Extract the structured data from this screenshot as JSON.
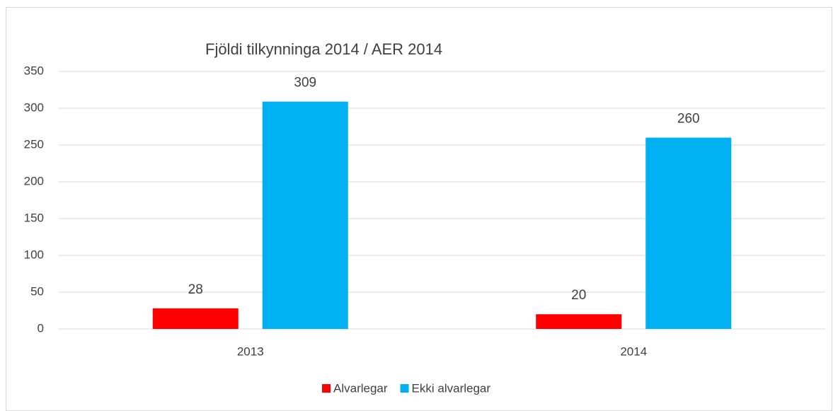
{
  "chart_data": {
    "type": "bar",
    "title": "Fjöldi tilkynninga 2014 / AER 2014",
    "categories": [
      "2013",
      "2014"
    ],
    "series": [
      {
        "name": "Alvarlegar",
        "color": "#ff0000",
        "values": [
          28,
          20
        ]
      },
      {
        "name": "Ekki alvarlegar",
        "color": "#00b0f0",
        "values": [
          309,
          260
        ]
      }
    ],
    "ylim": [
      0,
      350
    ],
    "yticks": [
      0,
      50,
      100,
      150,
      200,
      250,
      300,
      350
    ],
    "grid": true,
    "legend": "bottom"
  }
}
